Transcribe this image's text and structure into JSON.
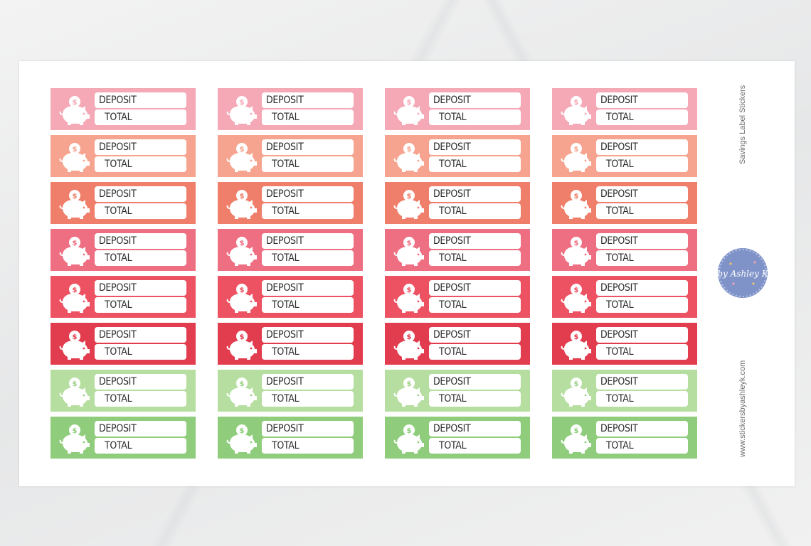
{
  "sheet": {
    "title": "Savings Label Stickers",
    "website": "www.stickersbyashleyk.com",
    "logo_text": "by Ashley K"
  },
  "sticker": {
    "deposit_label": "DEPOSIT",
    "total_label": "TOTAL",
    "icon": "piggy-bank-coin-icon"
  },
  "rows": [
    {
      "color": "#f5a8b6",
      "dollar": "#f5a8b6"
    },
    {
      "color": "#f6a490",
      "dollar": "#f6a490"
    },
    {
      "color": "#ef7f6a",
      "dollar": "#ef7f6a"
    },
    {
      "color": "#ee6e82",
      "dollar": "#ee6e82"
    },
    {
      "color": "#ec5261",
      "dollar": "#ec5261"
    },
    {
      "color": "#e23d4e",
      "dollar": "#e23d4e"
    },
    {
      "color": "#b6dea1",
      "dollar": "#9fd18a"
    },
    {
      "color": "#8fcd7c",
      "dollar": "#8fcd7c"
    }
  ],
  "columns": 4
}
